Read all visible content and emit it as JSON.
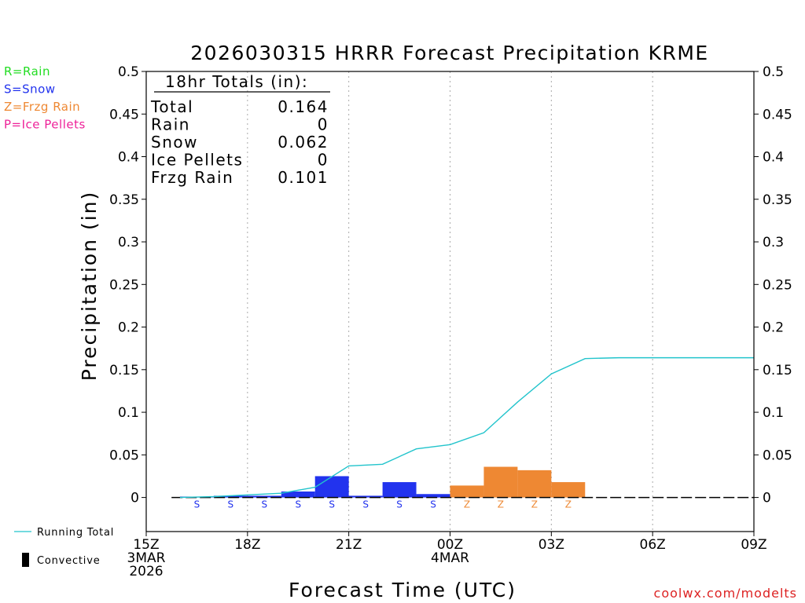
{
  "title": "2026030315 HRRR Forecast Precipitation KRME",
  "legend_keys": [
    {
      "text": "R=Rain",
      "color": "#22dd22"
    },
    {
      "text": "S=Snow",
      "color": "#2233ee"
    },
    {
      "text": "Z=Frzg Rain",
      "color": "#ee8833"
    },
    {
      "text": "P=Ice Pellets",
      "color": "#ee2299"
    }
  ],
  "totals": {
    "header": "18hr Totals (in):",
    "rows": [
      {
        "label": "Total",
        "value": "0.164"
      },
      {
        "label": "Rain",
        "value": "0"
      },
      {
        "label": "Snow",
        "value": "0.062"
      },
      {
        "label": "Ice Pellets",
        "value": "0"
      },
      {
        "label": "Frzg Rain",
        "value": "0.101"
      }
    ]
  },
  "bottom_legend": {
    "running_total": "Running Total",
    "convective": "Convective"
  },
  "credit": "coolwx.com/modelts",
  "colors": {
    "snow": "#2233ee",
    "frzg_rain": "#ee8833",
    "running_total": "#22c4cc",
    "grid": "#aaaaaa",
    "credit": "#dd2222"
  },
  "chart_data": {
    "type": "bar",
    "title": "2026030315 HRRR Forecast Precipitation KRME",
    "xlabel": "Forecast Time (UTC)",
    "ylabel": "Precipitation (in)",
    "ylim": [
      -0.04,
      0.5
    ],
    "yticks": [
      0,
      0.05,
      0.1,
      0.15,
      0.2,
      0.25,
      0.3,
      0.35,
      0.4,
      0.45,
      0.5
    ],
    "ytick_labels": [
      "0",
      "0.05",
      "0.1",
      "0.15",
      "0.2",
      "0.25",
      "0.3",
      "0.35",
      "0.4",
      "0.45",
      "0.5"
    ],
    "xlim_hours": [
      0,
      18
    ],
    "xticks": [
      {
        "hour": 0,
        "lines": [
          "15Z",
          "3MAR",
          "2026"
        ]
      },
      {
        "hour": 3,
        "lines": [
          "18Z"
        ]
      },
      {
        "hour": 6,
        "lines": [
          "21Z"
        ]
      },
      {
        "hour": 9,
        "lines": [
          "00Z",
          "4MAR"
        ]
      },
      {
        "hour": 12,
        "lines": [
          "03Z"
        ]
      },
      {
        "hour": 15,
        "lines": [
          "06Z"
        ]
      },
      {
        "hour": 18,
        "lines": [
          "09Z"
        ]
      }
    ],
    "grid": "vertical dotted at major ticks",
    "series": [
      {
        "name": "Hourly precipitation",
        "type": "bar",
        "points": [
          {
            "hour": 1,
            "value": 0.0,
            "ptype": ""
          },
          {
            "hour": 2,
            "value": 0.001,
            "ptype": "S"
          },
          {
            "hour": 3,
            "value": 0.002,
            "ptype": "S"
          },
          {
            "hour": 4,
            "value": 0.002,
            "ptype": "S"
          },
          {
            "hour": 5,
            "value": 0.007,
            "ptype": "S"
          },
          {
            "hour": 6,
            "value": 0.025,
            "ptype": "S"
          },
          {
            "hour": 7,
            "value": 0.002,
            "ptype": "S"
          },
          {
            "hour": 8,
            "value": 0.018,
            "ptype": "S"
          },
          {
            "hour": 9,
            "value": 0.004,
            "ptype": "S"
          },
          {
            "hour": 10,
            "value": 0.014,
            "ptype": "Z"
          },
          {
            "hour": 11,
            "value": 0.036,
            "ptype": "Z"
          },
          {
            "hour": 12,
            "value": 0.032,
            "ptype": "Z"
          },
          {
            "hour": 13,
            "value": 0.018,
            "ptype": "Z"
          },
          {
            "hour": 14,
            "value": 0.0,
            "ptype": ""
          },
          {
            "hour": 15,
            "value": 0.0,
            "ptype": ""
          },
          {
            "hour": 16,
            "value": 0.0,
            "ptype": ""
          },
          {
            "hour": 17,
            "value": 0.0,
            "ptype": ""
          },
          {
            "hour": 18,
            "value": 0.0,
            "ptype": ""
          }
        ]
      },
      {
        "name": "Running Total",
        "type": "line",
        "x": [
          1,
          2,
          3,
          4,
          5,
          6,
          7,
          8,
          9,
          10,
          11,
          12,
          13,
          14,
          15,
          16,
          17,
          18
        ],
        "values": [
          0.0,
          0.001,
          0.003,
          0.005,
          0.012,
          0.037,
          0.039,
          0.057,
          0.062,
          0.076,
          0.112,
          0.145,
          0.163,
          0.164,
          0.164,
          0.164,
          0.164,
          0.164
        ]
      }
    ]
  }
}
